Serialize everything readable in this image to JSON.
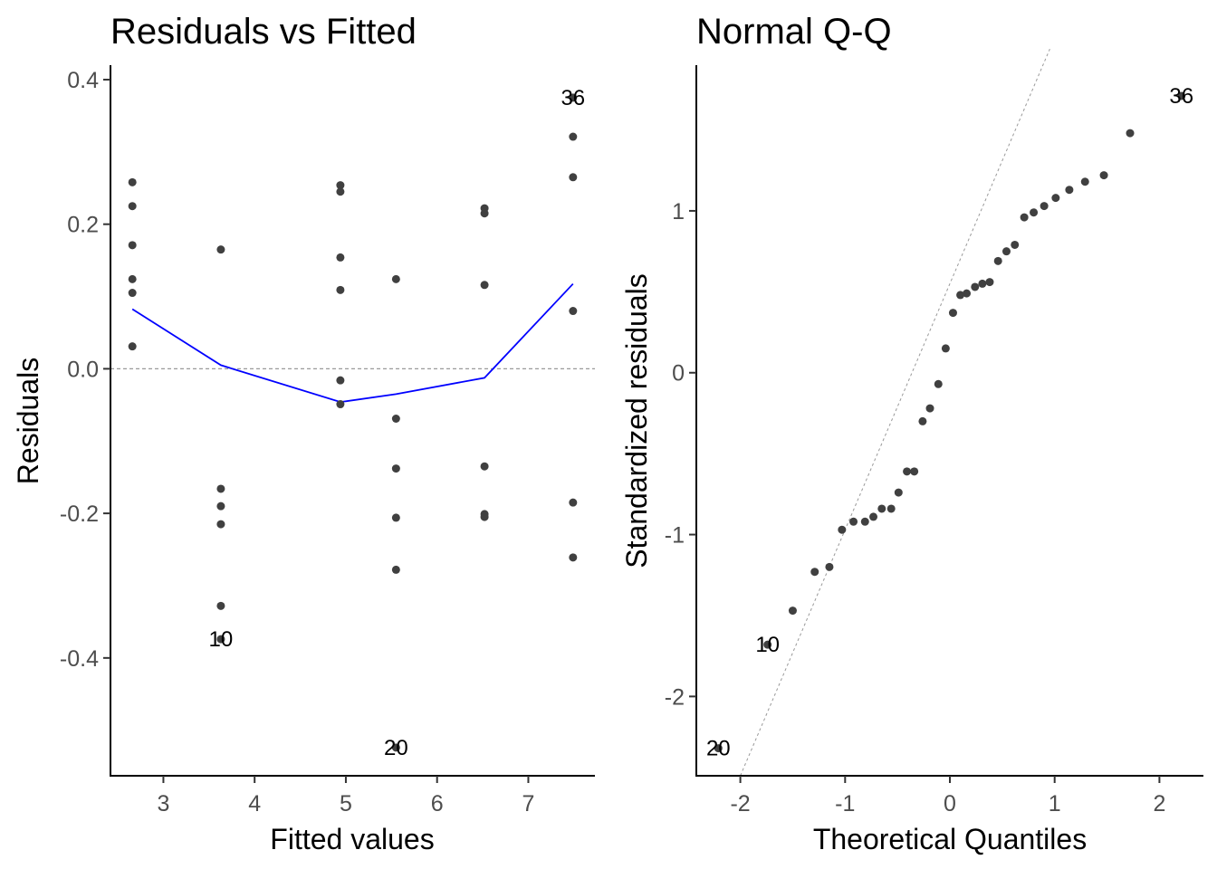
{
  "chart_data": [
    {
      "type": "scatter",
      "title": "Residuals vs Fitted",
      "xlabel": "Fitted values",
      "ylabel": "Residuals",
      "xlim": [
        2.42,
        7.73
      ],
      "ylim": [
        -0.563,
        0.42
      ],
      "xticks": [
        3,
        4,
        5,
        6,
        7
      ],
      "xtick_labels": [
        "3",
        "4",
        "5",
        "6",
        "7"
      ],
      "yticks": [
        0.4,
        0.2,
        0.0,
        -0.2,
        -0.4
      ],
      "ytick_labels": [
        "0.4",
        "0.2",
        "0.0",
        "-0.2",
        "-0.4"
      ],
      "grid": false,
      "reference_line": {
        "y": 0,
        "style": "dashed",
        "color": "#999999"
      },
      "point_color": "#404040",
      "points": [
        {
          "x": 2.66,
          "y": 0.258
        },
        {
          "x": 2.66,
          "y": 0.225
        },
        {
          "x": 2.66,
          "y": 0.171
        },
        {
          "x": 2.66,
          "y": 0.124
        },
        {
          "x": 2.66,
          "y": 0.105
        },
        {
          "x": 2.66,
          "y": 0.031
        },
        {
          "x": 3.63,
          "y": 0.165
        },
        {
          "x": 3.63,
          "y": -0.166
        },
        {
          "x": 3.63,
          "y": -0.19
        },
        {
          "x": 3.63,
          "y": -0.215
        },
        {
          "x": 3.63,
          "y": -0.328
        },
        {
          "x": 3.63,
          "y": -0.374,
          "label": "10"
        },
        {
          "x": 4.94,
          "y": 0.254
        },
        {
          "x": 4.94,
          "y": 0.245
        },
        {
          "x": 4.94,
          "y": 0.154
        },
        {
          "x": 4.94,
          "y": 0.109
        },
        {
          "x": 4.94,
          "y": -0.016
        },
        {
          "x": 4.94,
          "y": -0.049
        },
        {
          "x": 5.55,
          "y": 0.124
        },
        {
          "x": 5.55,
          "y": -0.069
        },
        {
          "x": 5.55,
          "y": -0.138
        },
        {
          "x": 5.55,
          "y": -0.206
        },
        {
          "x": 5.55,
          "y": -0.278
        },
        {
          "x": 5.55,
          "y": -0.524,
          "label": "20"
        },
        {
          "x": 6.52,
          "y": 0.222
        },
        {
          "x": 6.52,
          "y": 0.215
        },
        {
          "x": 6.52,
          "y": 0.116
        },
        {
          "x": 6.52,
          "y": -0.135
        },
        {
          "x": 6.52,
          "y": -0.201
        },
        {
          "x": 6.52,
          "y": -0.205
        },
        {
          "x": 7.49,
          "y": 0.375,
          "label": "36"
        },
        {
          "x": 7.49,
          "y": 0.321
        },
        {
          "x": 7.49,
          "y": 0.265
        },
        {
          "x": 7.49,
          "y": 0.08
        },
        {
          "x": 7.49,
          "y": -0.185
        },
        {
          "x": 7.49,
          "y": -0.261
        }
      ],
      "smooth_line": {
        "color": "#0000ff",
        "x": [
          2.66,
          3.63,
          4.94,
          5.55,
          6.52,
          7.49
        ],
        "y": [
          0.0825,
          0.005,
          -0.046,
          -0.035,
          -0.0125,
          0.1175
        ]
      }
    },
    {
      "type": "scatter",
      "title": "Normal Q-Q",
      "xlabel": "Theoretical Quantiles",
      "ylabel": "Standardized residuals",
      "xlim": [
        -2.42,
        2.42
      ],
      "ylim": [
        -2.49,
        1.9
      ],
      "xticks": [
        -2,
        -1,
        0,
        1,
        2
      ],
      "xtick_labels": [
        "-2",
        "-1",
        "0",
        "1",
        "2"
      ],
      "yticks": [
        1,
        0,
        -1,
        -2
      ],
      "ytick_labels": [
        "1",
        "0",
        "-1",
        "-2"
      ],
      "grid": false,
      "reference_line": {
        "slope": 1.52,
        "intercept": 0.55,
        "style": "dashed",
        "color": "#999999"
      },
      "point_color": "#404040",
      "points": [
        {
          "x": -2.21,
          "y": -2.32,
          "label": "20"
        },
        {
          "x": -1.74,
          "y": -1.68,
          "label": "10"
        },
        {
          "x": -1.5,
          "y": -1.47
        },
        {
          "x": -1.29,
          "y": -1.23
        },
        {
          "x": -1.15,
          "y": -1.2
        },
        {
          "x": -1.03,
          "y": -0.97
        },
        {
          "x": -0.92,
          "y": -0.92
        },
        {
          "x": -0.81,
          "y": -0.92
        },
        {
          "x": -0.73,
          "y": -0.89
        },
        {
          "x": -0.65,
          "y": -0.84
        },
        {
          "x": -0.56,
          "y": -0.84
        },
        {
          "x": -0.49,
          "y": -0.74
        },
        {
          "x": -0.41,
          "y": -0.61
        },
        {
          "x": -0.34,
          "y": -0.61
        },
        {
          "x": -0.26,
          "y": -0.3
        },
        {
          "x": -0.19,
          "y": -0.22
        },
        {
          "x": -0.11,
          "y": -0.07
        },
        {
          "x": -0.04,
          "y": 0.15
        },
        {
          "x": 0.03,
          "y": 0.37
        },
        {
          "x": 0.1,
          "y": 0.48
        },
        {
          "x": 0.16,
          "y": 0.49
        },
        {
          "x": 0.24,
          "y": 0.53
        },
        {
          "x": 0.31,
          "y": 0.55
        },
        {
          "x": 0.38,
          "y": 0.56
        },
        {
          "x": 0.46,
          "y": 0.69
        },
        {
          "x": 0.54,
          "y": 0.75
        },
        {
          "x": 0.62,
          "y": 0.79
        },
        {
          "x": 0.71,
          "y": 0.96
        },
        {
          "x": 0.8,
          "y": 0.99
        },
        {
          "x": 0.9,
          "y": 1.03
        },
        {
          "x": 1.01,
          "y": 1.08
        },
        {
          "x": 1.14,
          "y": 1.13
        },
        {
          "x": 1.29,
          "y": 1.18
        },
        {
          "x": 1.47,
          "y": 1.22
        },
        {
          "x": 1.72,
          "y": 1.48
        },
        {
          "x": 2.21,
          "y": 1.71,
          "label": "36"
        }
      ]
    }
  ]
}
